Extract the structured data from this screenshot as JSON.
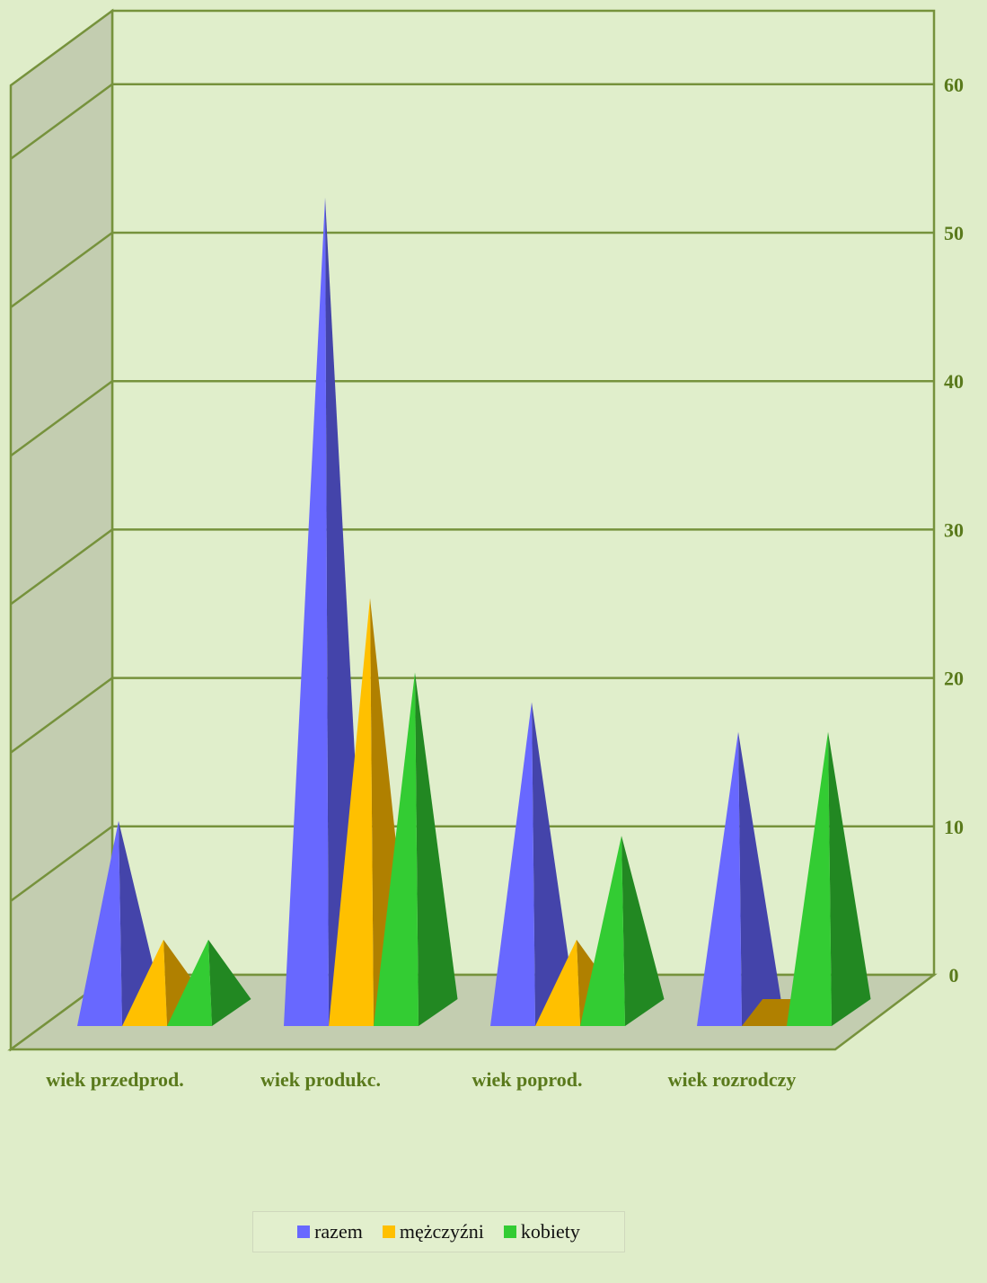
{
  "chart_data": {
    "type": "bar",
    "style": "3d-pyramid",
    "categories": [
      "wiek przedprod.",
      "wiek produkc.",
      "wiek poprod.",
      "wiek rozrodczy"
    ],
    "series": [
      {
        "name": "razem",
        "values": [
          14,
          56,
          22,
          20
        ],
        "color": "#6868ff",
        "shade": "#4444aa"
      },
      {
        "name": "mężczyźni",
        "values": [
          6,
          29,
          6,
          0
        ],
        "color": "#ffc000",
        "shade": "#b08000"
      },
      {
        "name": "kobiety",
        "values": [
          6,
          24,
          13,
          20
        ],
        "color": "#33cc33",
        "shade": "#228822"
      }
    ],
    "ylim": [
      0,
      60
    ],
    "yticks": [
      0,
      10,
      20,
      30,
      40,
      50,
      60
    ],
    "grid": true,
    "legend_position": "bottom",
    "colors": {
      "background": "#dfedc9",
      "wall": "#c3cdb0",
      "axis": "#76923c",
      "tick_text": "#5a7a1c"
    }
  }
}
